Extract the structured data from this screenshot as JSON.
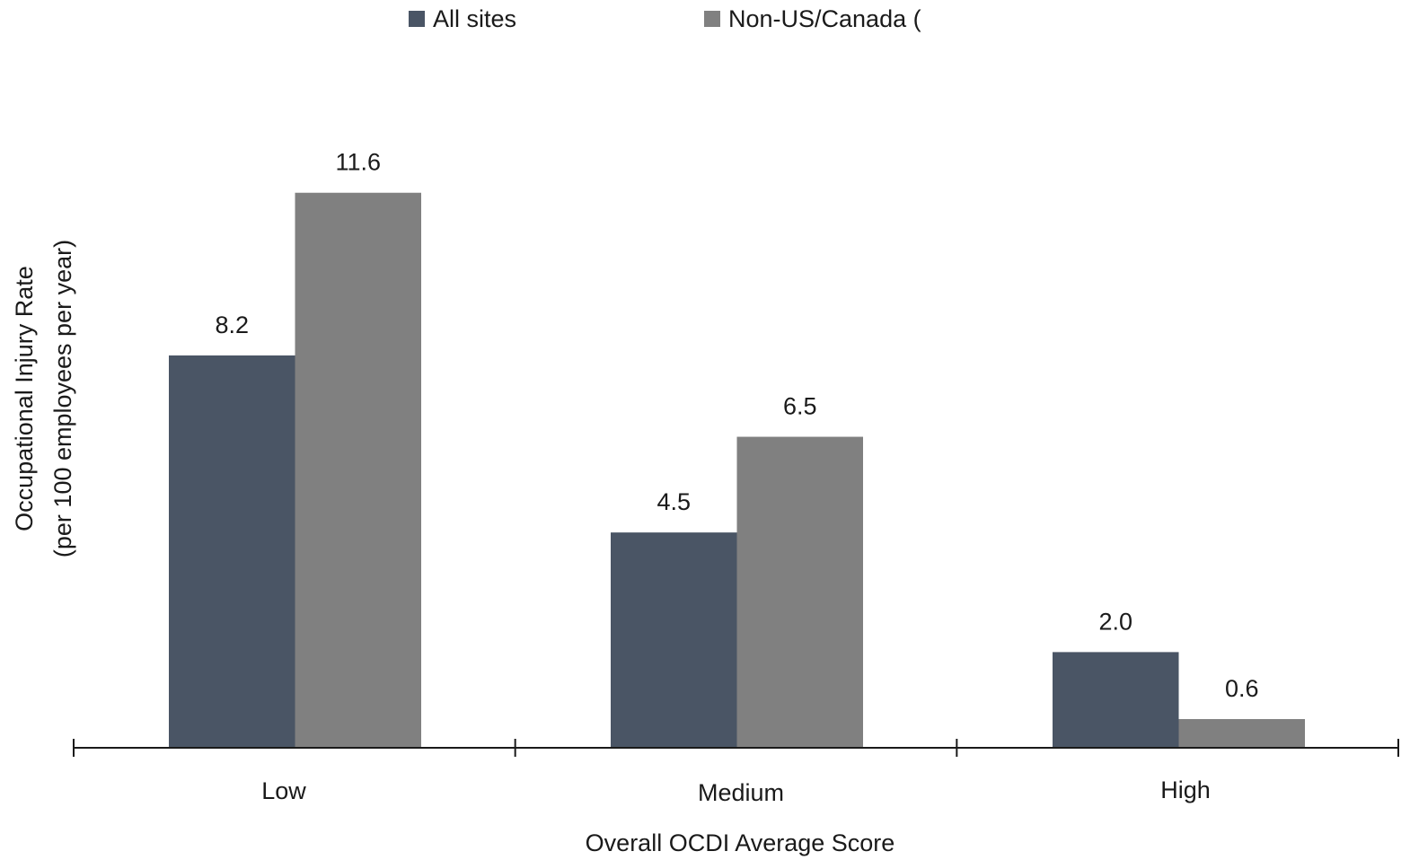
{
  "chart_data": {
    "type": "bar",
    "xlabel": "Overall OCDI Average Score",
    "ylabel_lines": [
      "Occupational Injury Rate",
      "(per 100 employees per year)"
    ],
    "categories": [
      "Low",
      "Medium",
      "High"
    ],
    "series": [
      {
        "name": "All sites",
        "values": [
          8.2,
          4.5,
          2.0
        ],
        "labels": [
          "8.2",
          "4.5",
          "2.0"
        ],
        "color": "#4a5565"
      },
      {
        "name": "Non-US/Canada (",
        "values": [
          11.6,
          6.5,
          0.6
        ],
        "labels": [
          "11.6",
          "6.5",
          "0.6"
        ],
        "color": "#808080"
      }
    ],
    "ylim": [
      0,
      14.5
    ],
    "grid": false,
    "legend": "top"
  }
}
